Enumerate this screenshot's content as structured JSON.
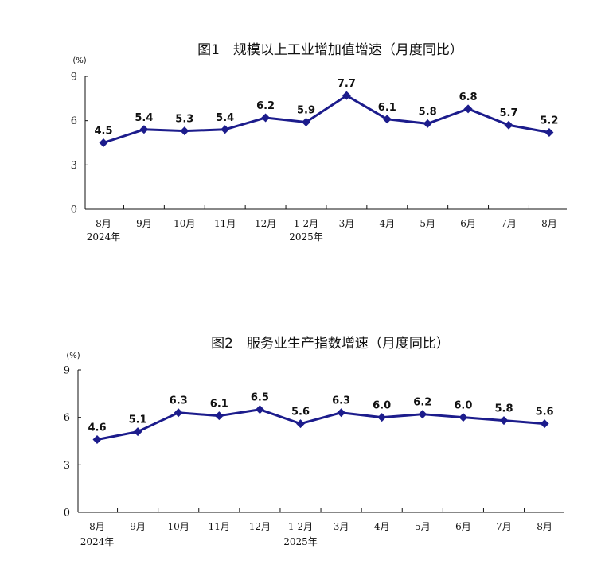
{
  "series_color": "#1c1c8c",
  "chart_data": [
    {
      "type": "line",
      "title": "图1　规模以上工业增加值增速（月度同比）",
      "unit": "(%)",
      "ylim": [
        0,
        9
      ],
      "yticks": [
        "0",
        "3",
        "6",
        "9"
      ],
      "categories": [
        "8月",
        "9月",
        "10月",
        "11月",
        "12月",
        "1-2月",
        "3月",
        "4月",
        "5月",
        "6月",
        "7月",
        "8月"
      ],
      "year_labels": [
        {
          "index": 0,
          "label": "2024年"
        },
        {
          "index": 5,
          "label": "2025年"
        }
      ],
      "values": [
        4.5,
        5.4,
        5.3,
        5.4,
        6.2,
        5.9,
        7.7,
        6.1,
        5.8,
        6.8,
        5.7,
        5.2
      ],
      "value_labels": [
        "4.5",
        "5.4",
        "5.3",
        "5.4",
        "6.2",
        "5.9",
        "7.7",
        "6.1",
        "5.8",
        "6.8",
        "5.7",
        "5.2"
      ]
    },
    {
      "type": "line",
      "title": "图2　服务业生产指数增速（月度同比）",
      "unit": "(%)",
      "ylim": [
        0,
        9
      ],
      "yticks": [
        "0",
        "3",
        "6",
        "9"
      ],
      "categories": [
        "8月",
        "9月",
        "10月",
        "11月",
        "12月",
        "1-2月",
        "3月",
        "4月",
        "5月",
        "6月",
        "7月",
        "8月"
      ],
      "year_labels": [
        {
          "index": 0,
          "label": "2024年"
        },
        {
          "index": 5,
          "label": "2025年"
        }
      ],
      "values": [
        4.6,
        5.1,
        6.3,
        6.1,
        6.5,
        5.6,
        6.3,
        6.0,
        6.2,
        6.0,
        5.8,
        5.6
      ],
      "value_labels": [
        "4.6",
        "5.1",
        "6.3",
        "6.1",
        "6.5",
        "5.6",
        "6.3",
        "6.0",
        "6.2",
        "6.0",
        "5.8",
        "5.6"
      ]
    }
  ]
}
